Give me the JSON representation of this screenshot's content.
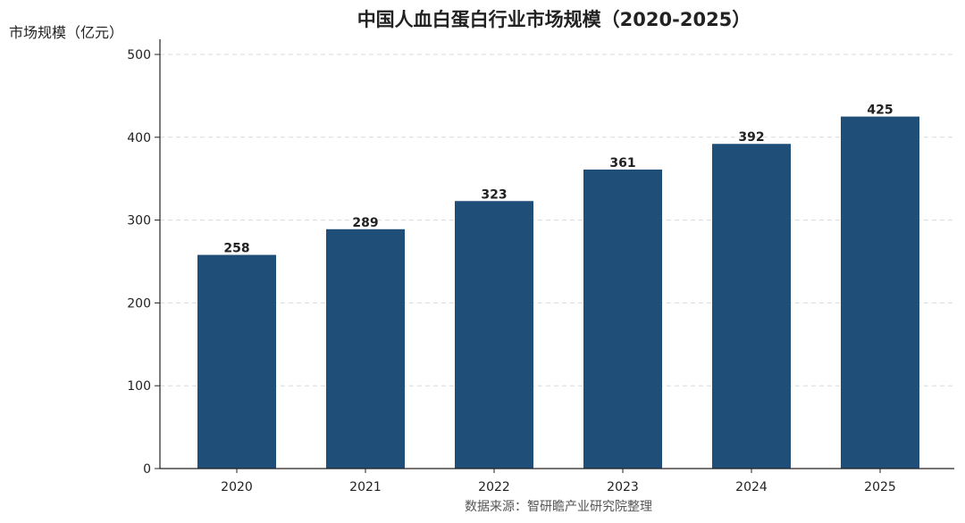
{
  "chart_data": {
    "type": "bar",
    "title": "中国人血白蛋白行业市场规模（2020-2025）",
    "ylabel": "市场规模（亿元）",
    "xlabel": "",
    "categories": [
      "2020",
      "2021",
      "2022",
      "2023",
      "2024",
      "2025"
    ],
    "values": [
      258,
      289,
      323,
      361,
      392,
      425
    ],
    "ylim": [
      0,
      500
    ],
    "yticks": [
      0,
      100,
      200,
      300,
      400,
      500
    ],
    "bar_color": "#1f4e79",
    "grid": "horizontal-dashed",
    "legend": "none",
    "source": "数据来源：智研瞻产业研究院整理"
  }
}
